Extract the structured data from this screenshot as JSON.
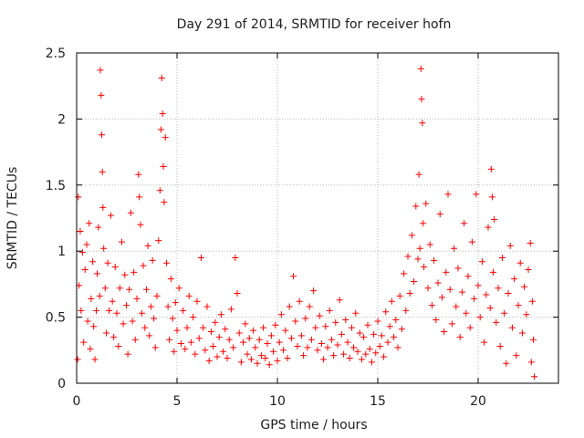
{
  "chart_data": {
    "type": "scatter",
    "title": "Day 291 of 2014, SRMTID for receiver hofn",
    "xlabel": "GPS time / hours",
    "ylabel": "SRMTID / TECUs",
    "xlim": [
      0,
      24
    ],
    "ylim": [
      0,
      2.5
    ],
    "x_ticks": [
      0,
      5,
      10,
      15,
      20
    ],
    "y_ticks": [
      0,
      0.5,
      1,
      1.5,
      2,
      2.5
    ],
    "x_tick_labels": [
      "0",
      "5",
      "10",
      "15",
      "20"
    ],
    "y_tick_labels": [
      "0",
      "0.5",
      "1",
      "1.5",
      "2",
      "2.5"
    ],
    "grid": true,
    "marker": "+",
    "series_color": "#ff0000",
    "series": [
      {
        "name": "SRMTID",
        "points": [
          [
            0.05,
            0.18
          ],
          [
            0.08,
            1.41
          ],
          [
            0.12,
            0.74
          ],
          [
            0.18,
            1.15
          ],
          [
            0.22,
            0.55
          ],
          [
            0.29,
            0.99
          ],
          [
            0.35,
            0.31
          ],
          [
            0.42,
            0.86
          ],
          [
            0.5,
            1.05
          ],
          [
            0.55,
            0.47
          ],
          [
            0.62,
            1.21
          ],
          [
            0.68,
            0.26
          ],
          [
            0.72,
            0.64
          ],
          [
            0.8,
            0.92
          ],
          [
            0.85,
            0.43
          ],
          [
            0.91,
            0.18
          ],
          [
            0.98,
            0.55
          ],
          [
            1.02,
            0.83
          ],
          [
            1.08,
            1.18
          ],
          [
            1.15,
            0.66
          ],
          [
            1.18,
            2.37
          ],
          [
            1.22,
            2.18
          ],
          [
            1.25,
            1.88
          ],
          [
            1.28,
            1.6
          ],
          [
            1.31,
            1.33
          ],
          [
            1.35,
            1.02
          ],
          [
            1.42,
            0.72
          ],
          [
            1.48,
            0.38
          ],
          [
            1.55,
            0.91
          ],
          [
            1.62,
            0.55
          ],
          [
            1.7,
            1.27
          ],
          [
            1.78,
            0.62
          ],
          [
            1.85,
            0.35
          ],
          [
            1.92,
            0.88
          ],
          [
            2.0,
            0.53
          ],
          [
            2.08,
            0.28
          ],
          [
            2.15,
            0.72
          ],
          [
            2.25,
            1.07
          ],
          [
            2.32,
            0.45
          ],
          [
            2.4,
            0.82
          ],
          [
            2.48,
            0.59
          ],
          [
            2.55,
            0.22
          ],
          [
            2.62,
            0.71
          ],
          [
            2.7,
            1.29
          ],
          [
            2.78,
            0.47
          ],
          [
            2.85,
            0.84
          ],
          [
            2.92,
            0.33
          ],
          [
            3.0,
            0.64
          ],
          [
            3.08,
            1.58
          ],
          [
            3.12,
            1.41
          ],
          [
            3.18,
            1.2
          ],
          [
            3.25,
            0.53
          ],
          [
            3.32,
            0.89
          ],
          [
            3.4,
            0.42
          ],
          [
            3.48,
            0.71
          ],
          [
            3.55,
            1.04
          ],
          [
            3.62,
            0.36
          ],
          [
            3.7,
            0.58
          ],
          [
            3.78,
            0.93
          ],
          [
            3.85,
            0.49
          ],
          [
            3.92,
            0.27
          ],
          [
            4.0,
            0.66
          ],
          [
            4.08,
            1.08
          ],
          [
            4.15,
            1.46
          ],
          [
            4.2,
            1.92
          ],
          [
            4.24,
            2.31
          ],
          [
            4.28,
            2.04
          ],
          [
            4.32,
            1.64
          ],
          [
            4.36,
            1.37
          ],
          [
            4.42,
            1.86
          ],
          [
            4.48,
            0.91
          ],
          [
            4.55,
            0.58
          ],
          [
            4.62,
            0.33
          ],
          [
            4.7,
            0.79
          ],
          [
            4.78,
            0.49
          ],
          [
            4.85,
            0.24
          ],
          [
            4.92,
            0.61
          ],
          [
            5.0,
            0.4
          ],
          [
            5.1,
            0.72
          ],
          [
            5.2,
            0.3
          ],
          [
            5.3,
            0.55
          ],
          [
            5.4,
            0.26
          ],
          [
            5.5,
            0.42
          ],
          [
            5.6,
            0.66
          ],
          [
            5.7,
            0.31
          ],
          [
            5.8,
            0.5
          ],
          [
            5.9,
            0.22
          ],
          [
            6.0,
            0.62
          ],
          [
            6.1,
            0.34
          ],
          [
            6.2,
            0.95
          ],
          [
            6.3,
            0.42
          ],
          [
            6.4,
            0.25
          ],
          [
            6.5,
            0.58
          ],
          [
            6.6,
            0.17
          ],
          [
            6.7,
            0.39
          ],
          [
            6.8,
            0.28
          ],
          [
            6.9,
            0.46
          ],
          [
            7.0,
            0.2
          ],
          [
            7.1,
            0.35
          ],
          [
            7.2,
            0.52
          ],
          [
            7.3,
            0.24
          ],
          [
            7.4,
            0.41
          ],
          [
            7.5,
            0.19
          ],
          [
            7.6,
            0.33
          ],
          [
            7.7,
            0.56
          ],
          [
            7.8,
            0.27
          ],
          [
            7.9,
            0.95
          ],
          [
            8.0,
            0.68
          ],
          [
            8.1,
            0.38
          ],
          [
            8.2,
            0.16
          ],
          [
            8.3,
            0.31
          ],
          [
            8.4,
            0.45
          ],
          [
            8.5,
            0.22
          ],
          [
            8.6,
            0.34
          ],
          [
            8.7,
            0.18
          ],
          [
            8.8,
            0.4
          ],
          [
            8.9,
            0.27
          ],
          [
            9.0,
            0.15
          ],
          [
            9.1,
            0.33
          ],
          [
            9.2,
            0.21
          ],
          [
            9.3,
            0.42
          ],
          [
            9.4,
            0.19
          ],
          [
            9.5,
            0.3
          ],
          [
            9.6,
            0.14
          ],
          [
            9.7,
            0.36
          ],
          [
            9.8,
            0.24
          ],
          [
            9.9,
            0.44
          ],
          [
            10.0,
            0.17
          ],
          [
            10.1,
            0.31
          ],
          [
            10.2,
            0.52
          ],
          [
            10.3,
            0.25
          ],
          [
            10.4,
            0.4
          ],
          [
            10.5,
            0.19
          ],
          [
            10.6,
            0.58
          ],
          [
            10.7,
            0.34
          ],
          [
            10.8,
            0.81
          ],
          [
            10.9,
            0.47
          ],
          [
            11.0,
            0.28
          ],
          [
            11.1,
            0.62
          ],
          [
            11.2,
            0.36
          ],
          [
            11.3,
            0.21
          ],
          [
            11.4,
            0.49
          ],
          [
            11.5,
            0.27
          ],
          [
            11.6,
            0.58
          ],
          [
            11.7,
            0.33
          ],
          [
            11.8,
            0.7
          ],
          [
            11.9,
            0.42
          ],
          [
            12.0,
            0.25
          ],
          [
            12.1,
            0.51
          ],
          [
            12.2,
            0.3
          ],
          [
            12.3,
            0.18
          ],
          [
            12.4,
            0.43
          ],
          [
            12.5,
            0.27
          ],
          [
            12.6,
            0.55
          ],
          [
            12.7,
            0.33
          ],
          [
            12.8,
            0.21
          ],
          [
            12.9,
            0.46
          ],
          [
            13.0,
            0.29
          ],
          [
            13.1,
            0.63
          ],
          [
            13.2,
            0.37
          ],
          [
            13.3,
            0.22
          ],
          [
            13.4,
            0.48
          ],
          [
            13.5,
            0.31
          ],
          [
            13.6,
            0.19
          ],
          [
            13.7,
            0.42
          ],
          [
            13.8,
            0.27
          ],
          [
            13.9,
            0.53
          ],
          [
            14.0,
            0.24
          ],
          [
            14.1,
            0.38
          ],
          [
            14.2,
            0.18
          ],
          [
            14.3,
            0.35
          ],
          [
            14.4,
            0.22
          ],
          [
            14.5,
            0.44
          ],
          [
            14.6,
            0.26
          ],
          [
            14.7,
            0.16
          ],
          [
            14.8,
            0.37
          ],
          [
            14.9,
            0.23
          ],
          [
            15.0,
            0.47
          ],
          [
            15.1,
            0.28
          ],
          [
            15.2,
            0.36
          ],
          [
            15.3,
            0.2
          ],
          [
            15.4,
            0.54
          ],
          [
            15.5,
            0.31
          ],
          [
            15.6,
            0.43
          ],
          [
            15.7,
            0.62
          ],
          [
            15.8,
            0.35
          ],
          [
            15.9,
            0.48
          ],
          [
            16.0,
            0.27
          ],
          [
            16.1,
            0.66
          ],
          [
            16.2,
            0.41
          ],
          [
            16.3,
            0.83
          ],
          [
            16.4,
            0.55
          ],
          [
            16.5,
            0.96
          ],
          [
            16.6,
            0.68
          ],
          [
            16.7,
            1.12
          ],
          [
            16.8,
            0.77
          ],
          [
            16.9,
            1.34
          ],
          [
            17.0,
            0.94
          ],
          [
            17.05,
            1.58
          ],
          [
            17.1,
            1.02
          ],
          [
            17.15,
            2.38
          ],
          [
            17.18,
            2.15
          ],
          [
            17.22,
            1.97
          ],
          [
            17.26,
            1.21
          ],
          [
            17.3,
            0.88
          ],
          [
            17.4,
            1.36
          ],
          [
            17.5,
            0.72
          ],
          [
            17.6,
            1.05
          ],
          [
            17.7,
            0.59
          ],
          [
            17.8,
            0.93
          ],
          [
            17.9,
            0.48
          ],
          [
            18.0,
            0.76
          ],
          [
            18.1,
            1.28
          ],
          [
            18.2,
            0.65
          ],
          [
            18.3,
            0.39
          ],
          [
            18.4,
            0.84
          ],
          [
            18.5,
            1.43
          ],
          [
            18.6,
            0.71
          ],
          [
            18.7,
            0.45
          ],
          [
            18.8,
            1.02
          ],
          [
            18.9,
            0.58
          ],
          [
            19.0,
            0.87
          ],
          [
            19.1,
            0.35
          ],
          [
            19.2,
            0.69
          ],
          [
            19.3,
            1.21
          ],
          [
            19.4,
            0.53
          ],
          [
            19.5,
            0.81
          ],
          [
            19.6,
            0.42
          ],
          [
            19.7,
            1.07
          ],
          [
            19.8,
            0.64
          ],
          [
            19.9,
            1.43
          ],
          [
            20.0,
            0.74
          ],
          [
            20.1,
            0.5
          ],
          [
            20.2,
            0.92
          ],
          [
            20.3,
            0.31
          ],
          [
            20.4,
            0.67
          ],
          [
            20.5,
            1.18
          ],
          [
            20.6,
            0.57
          ],
          [
            20.65,
            1.62
          ],
          [
            20.7,
            1.41
          ],
          [
            20.75,
            0.84
          ],
          [
            20.8,
            1.24
          ],
          [
            20.9,
            0.46
          ],
          [
            21.0,
            0.72
          ],
          [
            21.1,
            0.28
          ],
          [
            21.2,
            0.95
          ],
          [
            21.3,
            0.53
          ],
          [
            21.4,
            0.15
          ],
          [
            21.5,
            0.68
          ],
          [
            21.6,
            1.04
          ],
          [
            21.7,
            0.42
          ],
          [
            21.8,
            0.79
          ],
          [
            21.9,
            0.21
          ],
          [
            22.0,
            0.59
          ],
          [
            22.1,
            0.91
          ],
          [
            22.2,
            0.38
          ],
          [
            22.3,
            0.73
          ],
          [
            22.4,
            0.52
          ],
          [
            22.5,
            0.86
          ],
          [
            22.6,
            1.06
          ],
          [
            22.65,
            0.16
          ],
          [
            22.7,
            0.62
          ],
          [
            22.75,
            0.33
          ],
          [
            22.8,
            0.05
          ]
        ]
      }
    ]
  }
}
